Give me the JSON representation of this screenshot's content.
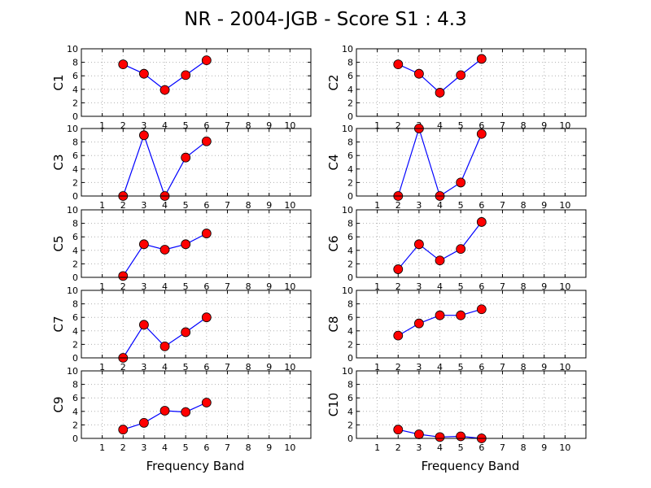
{
  "chart_data": {
    "title": "NR - 2004-JGB - Score S1 : 4.3",
    "type": "line",
    "xlabel": "Frequency Band",
    "xlim": [
      0,
      11
    ],
    "ylim": [
      0,
      10
    ],
    "xticks": [
      1,
      2,
      3,
      4,
      5,
      6,
      7,
      8,
      9,
      10
    ],
    "yticks": [
      0,
      2,
      4,
      6,
      8,
      10
    ],
    "grid": true,
    "x": [
      2,
      3,
      4,
      5,
      6
    ],
    "line_color": "#0000ff",
    "marker_color": "#ff0000",
    "panels": [
      {
        "ylabel": "C1",
        "values": [
          7.7,
          6.3,
          3.9,
          6.1,
          8.3
        ]
      },
      {
        "ylabel": "C2",
        "values": [
          7.7,
          6.3,
          3.5,
          6.1,
          8.5
        ]
      },
      {
        "ylabel": "C3",
        "values": [
          0.0,
          9.0,
          0.0,
          5.7,
          8.1
        ]
      },
      {
        "ylabel": "C4",
        "values": [
          0.0,
          10.0,
          0.0,
          2.0,
          9.2
        ]
      },
      {
        "ylabel": "C5",
        "values": [
          0.2,
          4.9,
          4.1,
          4.9,
          6.5
        ]
      },
      {
        "ylabel": "C6",
        "values": [
          1.2,
          4.9,
          2.5,
          4.2,
          8.2
        ]
      },
      {
        "ylabel": "C7",
        "values": [
          0.0,
          4.9,
          1.7,
          3.8,
          6.0
        ]
      },
      {
        "ylabel": "C8",
        "values": [
          3.3,
          5.1,
          6.3,
          6.3,
          7.2
        ]
      },
      {
        "ylabel": "C9",
        "values": [
          1.3,
          2.3,
          4.1,
          3.9,
          5.3
        ]
      },
      {
        "ylabel": "C10",
        "values": [
          1.3,
          0.6,
          0.2,
          0.3,
          0.0
        ]
      }
    ]
  }
}
